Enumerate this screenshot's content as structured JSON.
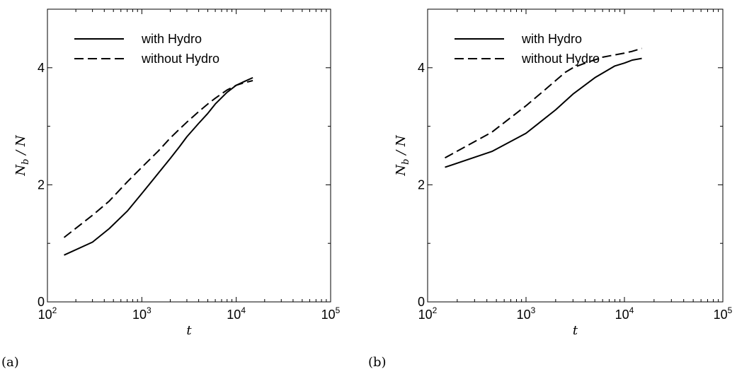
{
  "panel_labels": [
    "(a)",
    "(b)"
  ],
  "chart_data": [
    {
      "type": "line",
      "xscale": "log",
      "xlim": [
        100,
        100000
      ],
      "ylim": [
        0,
        5
      ],
      "xlabel": "t",
      "ylabel": "N_b / N",
      "xticks": [
        100,
        1000,
        10000,
        100000
      ],
      "xtick_labels": [
        {
          "base": "10",
          "exp": "2"
        },
        {
          "base": "10",
          "exp": "3"
        },
        {
          "base": "10",
          "exp": "4"
        },
        {
          "base": "10",
          "exp": "5"
        }
      ],
      "yticks": [
        0,
        2,
        4
      ],
      "ytick_labels": [
        "0",
        "2",
        "4"
      ],
      "grid": false,
      "legend": "top-left",
      "series": [
        {
          "name": "with Hydro",
          "style": "solid",
          "x": [
            150,
            300,
            450,
            700,
            1000,
            1500,
            2000,
            2500,
            3000,
            4000,
            5000,
            6000,
            8000,
            10000,
            12000,
            15000
          ],
          "y": [
            0.8,
            1.02,
            1.25,
            1.55,
            1.85,
            2.2,
            2.45,
            2.65,
            2.82,
            3.05,
            3.22,
            3.38,
            3.58,
            3.7,
            3.76,
            3.83
          ]
        },
        {
          "name": "without Hydro",
          "style": "dashed",
          "x": [
            150,
            300,
            450,
            700,
            1000,
            1500,
            2000,
            2500,
            3000,
            4000,
            5000,
            6000,
            8000,
            10000,
            12000,
            15000
          ],
          "y": [
            1.1,
            1.48,
            1.72,
            2.05,
            2.3,
            2.58,
            2.8,
            2.95,
            3.07,
            3.25,
            3.38,
            3.48,
            3.62,
            3.7,
            3.74,
            3.78
          ]
        }
      ]
    },
    {
      "type": "line",
      "xscale": "log",
      "xlim": [
        100,
        100000
      ],
      "ylim": [
        0,
        5
      ],
      "xlabel": "t",
      "ylabel": "N_b / N",
      "xticks": [
        100,
        1000,
        10000,
        100000
      ],
      "xtick_labels": [
        {
          "base": "10",
          "exp": "2"
        },
        {
          "base": "10",
          "exp": "3"
        },
        {
          "base": "10",
          "exp": "4"
        },
        {
          "base": "10",
          "exp": "5"
        }
      ],
      "yticks": [
        0,
        2,
        4
      ],
      "ytick_labels": [
        "0",
        "2",
        "4"
      ],
      "grid": false,
      "legend": "top-left",
      "series": [
        {
          "name": "with Hydro",
          "style": "solid",
          "x": [
            150,
            450,
            1000,
            2000,
            3000,
            5000,
            8000,
            10000,
            12000,
            15000
          ],
          "y": [
            2.3,
            2.57,
            2.88,
            3.28,
            3.55,
            3.83,
            4.03,
            4.08,
            4.13,
            4.16
          ]
        },
        {
          "name": "without Hydro",
          "style": "dashed",
          "x": [
            150,
            450,
            1000,
            1500,
            2000,
            2500,
            3000,
            4000,
            6000,
            8000,
            10000,
            12000,
            15000
          ],
          "y": [
            2.46,
            2.9,
            3.35,
            3.6,
            3.78,
            3.92,
            4.0,
            4.08,
            4.18,
            4.22,
            4.25,
            4.28,
            4.33
          ]
        }
      ]
    }
  ]
}
